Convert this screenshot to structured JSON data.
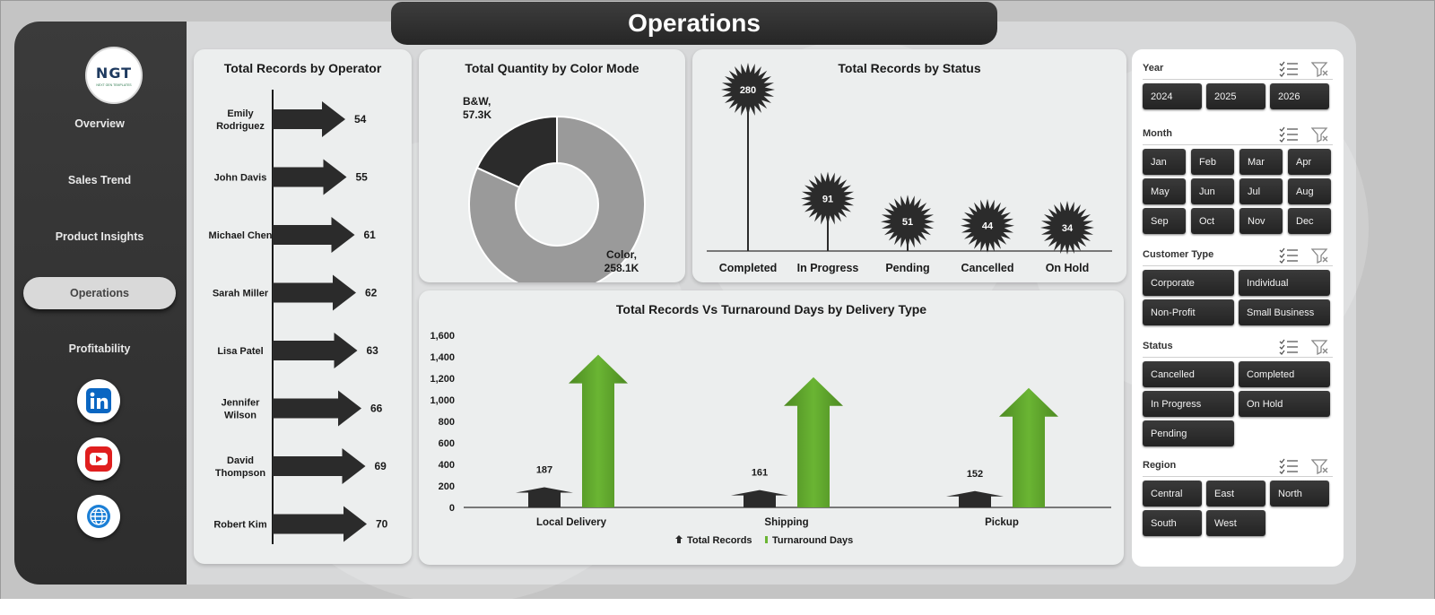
{
  "app": {
    "title": "Operations",
    "logo_text": "NGT",
    "logo_subtext": "NEXT GEN TEMPLATES"
  },
  "sidebar": {
    "items": [
      {
        "label": "Overview",
        "active": false
      },
      {
        "label": "Sales Trend",
        "active": false
      },
      {
        "label": "Product Insights",
        "active": false
      },
      {
        "label": "Operations",
        "active": true
      },
      {
        "label": "Profitability",
        "active": false
      }
    ],
    "social": [
      "linkedin-icon",
      "youtube-icon",
      "globe-icon"
    ]
  },
  "colors": {
    "dark": "#2b2b2b",
    "mid_gray": "#9a9a9a",
    "green": "#6ab533",
    "green_dark": "#4d8a22"
  },
  "chart_data": [
    {
      "type": "bar",
      "title": "Total Records by Operator",
      "orientation": "horizontal",
      "categories": [
        "Emily Rodriguez",
        "John Davis",
        "Michael Chen",
        "Sarah Miller",
        "Lisa Patel",
        "Jennifer Wilson",
        "David Thompson",
        "Robert Kim"
      ],
      "category_lines": [
        [
          "Emily",
          "Rodriguez"
        ],
        [
          "John Davis"
        ],
        [
          "Michael Chen"
        ],
        [
          "Sarah Miller"
        ],
        [
          "Lisa Patel"
        ],
        [
          "Jennifer",
          "Wilson"
        ],
        [
          "David",
          "Thompson"
        ],
        [
          "Robert Kim"
        ]
      ],
      "values": [
        54,
        55,
        61,
        62,
        63,
        66,
        69,
        70
      ],
      "labels": [
        "54",
        "55",
        "61",
        "62",
        "63",
        "66",
        "69",
        "70"
      ],
      "xlim": [
        0,
        70
      ]
    },
    {
      "type": "pie",
      "title": "Total Quantity by Color Mode",
      "categories": [
        "B&W",
        "Color"
      ],
      "values": [
        57.3,
        258.1
      ],
      "units": "K",
      "label_lines": [
        [
          "B&W,",
          "57.3K"
        ],
        [
          "Color,",
          "258.1K"
        ]
      ]
    },
    {
      "type": "scatter",
      "title": "Total Records by Status",
      "categories": [
        "Completed",
        "In Progress",
        "Pending",
        "Cancelled",
        "On Hold"
      ],
      "values": [
        280,
        91,
        51,
        44,
        34
      ],
      "labels": [
        "280",
        "91",
        "51",
        "44",
        "34"
      ],
      "ylim": [
        0,
        280
      ]
    },
    {
      "type": "bar",
      "title": "Total Records Vs Turnaround Days by  Delivery Type",
      "categories": [
        "Local Delivery",
        "Shipping",
        "Pickup"
      ],
      "series": [
        {
          "name": "Total Records",
          "values": [
            187,
            161,
            152
          ],
          "labels": [
            "187",
            "161",
            "152"
          ]
        },
        {
          "name": "Turnaround Days",
          "values": [
            1420,
            1210,
            1110
          ]
        }
      ],
      "yticks": [
        "1,600",
        "1,400",
        "1,200",
        "1,000",
        "800",
        "600",
        "400",
        "200",
        "0"
      ],
      "ylim": [
        0,
        1600
      ],
      "legend": "bottom"
    }
  ],
  "slicers": [
    {
      "title": "Year",
      "options": [
        "2024",
        "2025",
        "2026"
      ]
    },
    {
      "title": "Month",
      "options": [
        "Jan",
        "Feb",
        "Mar",
        "Apr",
        "May",
        "Jun",
        "Jul",
        "Aug",
        "Sep",
        "Oct",
        "Nov",
        "Dec"
      ]
    },
    {
      "title": "Customer Type",
      "options": [
        "Corporate",
        "Individual",
        "Non-Profit",
        "Small Business"
      ]
    },
    {
      "title": "Status",
      "options": [
        "Cancelled",
        "Completed",
        "In Progress",
        "On Hold",
        "Pending"
      ]
    },
    {
      "title": "Region",
      "options": [
        "Central",
        "East",
        "North",
        "South",
        "West"
      ]
    }
  ]
}
